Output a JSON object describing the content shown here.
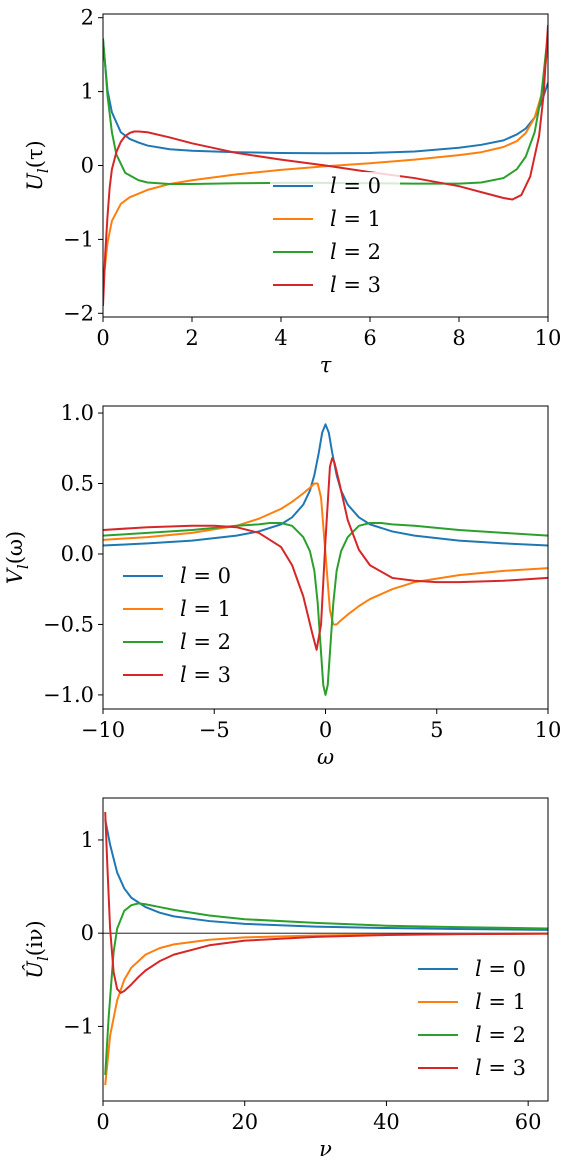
{
  "chart_data": [
    {
      "type": "line",
      "xlabel": "τ",
      "ylabel": "U_l(τ)",
      "xlim": [
        0,
        10
      ],
      "ylim": [
        -2.05,
        2.05
      ],
      "xticks": [
        0,
        2,
        4,
        6,
        8,
        10
      ],
      "xtick_labels": [
        "0",
        "2",
        "4",
        "6",
        "8",
        "10"
      ],
      "yticks": [
        -2,
        -1,
        0,
        1,
        2
      ],
      "ytick_labels": [
        "−2",
        "−1",
        "0",
        "1",
        "2"
      ],
      "legend_position": "lower-center",
      "zero_line": false,
      "series": [
        {
          "name": "l = 0",
          "color": "#1f77b4",
          "x": [
            0,
            0.1,
            0.2,
            0.4,
            0.6,
            0.8,
            1,
            1.5,
            2,
            3,
            4,
            5,
            6,
            7,
            8,
            8.5,
            9,
            9.3,
            9.5,
            9.7,
            9.85,
            10
          ],
          "y": [
            1.7,
            1.02,
            0.72,
            0.45,
            0.36,
            0.31,
            0.27,
            0.22,
            0.2,
            0.18,
            0.17,
            0.165,
            0.17,
            0.19,
            0.24,
            0.28,
            0.34,
            0.42,
            0.5,
            0.65,
            0.85,
            1.12
          ]
        },
        {
          "name": "l = 1",
          "color": "#ff7f0e",
          "x": [
            0,
            0.1,
            0.2,
            0.4,
            0.6,
            1,
            1.5,
            2,
            3,
            4,
            5,
            6,
            7,
            8,
            8.5,
            9,
            9.3,
            9.5,
            9.7,
            9.85,
            10
          ],
          "y": [
            -1.62,
            -1.05,
            -0.75,
            -0.52,
            -0.43,
            -0.33,
            -0.25,
            -0.2,
            -0.12,
            -0.06,
            -0.01,
            0.03,
            0.08,
            0.14,
            0.18,
            0.25,
            0.33,
            0.44,
            0.65,
            0.95,
            1.62
          ]
        },
        {
          "name": "l = 2",
          "color": "#2ca02c",
          "x": [
            0,
            0.05,
            0.1,
            0.2,
            0.3,
            0.5,
            0.8,
            1,
            1.5,
            2,
            3,
            4,
            5,
            6,
            7,
            8,
            8.5,
            9,
            9.3,
            9.5,
            9.7,
            9.85,
            10
          ],
          "y": [
            1.72,
            1.35,
            0.95,
            0.45,
            0.15,
            -0.1,
            -0.2,
            -0.23,
            -0.25,
            -0.25,
            -0.24,
            -0.235,
            -0.235,
            -0.24,
            -0.245,
            -0.245,
            -0.23,
            -0.17,
            -0.05,
            0.12,
            0.45,
            0.95,
            1.8
          ]
        },
        {
          "name": "l = 3",
          "color": "#d62728",
          "x": [
            0,
            0.05,
            0.1,
            0.15,
            0.2,
            0.3,
            0.4,
            0.5,
            0.6,
            0.7,
            0.8,
            1,
            1.5,
            2,
            3,
            4,
            5,
            6,
            7,
            8,
            8.5,
            9,
            9.2,
            9.4,
            9.6,
            9.8,
            9.9,
            10
          ],
          "y": [
            -1.9,
            -1.2,
            -0.7,
            -0.3,
            -0.05,
            0.18,
            0.32,
            0.4,
            0.44,
            0.46,
            0.46,
            0.45,
            0.38,
            0.3,
            0.17,
            0.08,
            0.0,
            -0.09,
            -0.17,
            -0.28,
            -0.36,
            -0.44,
            -0.46,
            -0.4,
            -0.15,
            0.4,
            0.95,
            1.9
          ]
        }
      ]
    },
    {
      "type": "line",
      "xlabel": "ω",
      "ylabel": "V_l(ω)",
      "xlim": [
        -10,
        10
      ],
      "ylim": [
        -1.1,
        1.05
      ],
      "xticks": [
        -10,
        -5,
        0,
        5,
        10
      ],
      "xtick_labels": [
        "−10",
        "−5",
        "0",
        "5",
        "10"
      ],
      "yticks": [
        -1.0,
        -0.5,
        0.0,
        0.5,
        1.0
      ],
      "ytick_labels": [
        "−1.0",
        "−0.5",
        "0.0",
        "0.5",
        "1.0"
      ],
      "legend_position": "lower-left",
      "zero_line": false,
      "series": [
        {
          "name": "l = 0",
          "color": "#1f77b4",
          "x": [
            -10,
            -8,
            -6,
            -4,
            -3,
            -2,
            -1.5,
            -1,
            -0.7,
            -0.5,
            -0.3,
            -0.15,
            0,
            0.15,
            0.3,
            0.5,
            0.7,
            1,
            1.5,
            2,
            3,
            4,
            6,
            8,
            10
          ],
          "y": [
            0.06,
            0.075,
            0.095,
            0.13,
            0.16,
            0.21,
            0.26,
            0.35,
            0.45,
            0.56,
            0.72,
            0.86,
            0.92,
            0.86,
            0.72,
            0.56,
            0.45,
            0.35,
            0.26,
            0.21,
            0.16,
            0.13,
            0.095,
            0.075,
            0.06
          ]
        },
        {
          "name": "l = 1",
          "color": "#ff7f0e",
          "x": [
            -10,
            -8,
            -6,
            -4,
            -3,
            -2,
            -1.5,
            -1,
            -0.7,
            -0.5,
            -0.35,
            -0.2,
            -0.1,
            0,
            0.1,
            0.2,
            0.35,
            0.5,
            0.7,
            1,
            1.5,
            2,
            3,
            4,
            6,
            8,
            10
          ],
          "y": [
            0.1,
            0.12,
            0.15,
            0.2,
            0.25,
            0.32,
            0.37,
            0.43,
            0.47,
            0.5,
            0.5,
            0.4,
            0.2,
            0.0,
            -0.2,
            -0.4,
            -0.5,
            -0.5,
            -0.47,
            -0.43,
            -0.37,
            -0.32,
            -0.25,
            -0.2,
            -0.15,
            -0.12,
            -0.1
          ]
        },
        {
          "name": "l = 2",
          "color": "#2ca02c",
          "x": [
            -10,
            -8,
            -6,
            -4,
            -3,
            -2.5,
            -2,
            -1.5,
            -1,
            -0.7,
            -0.5,
            -0.35,
            -0.2,
            -0.1,
            0,
            0.1,
            0.2,
            0.35,
            0.5,
            0.7,
            1,
            1.5,
            2,
            2.5,
            3,
            4,
            6,
            8,
            10
          ],
          "y": [
            0.13,
            0.15,
            0.17,
            0.2,
            0.21,
            0.22,
            0.22,
            0.2,
            0.12,
            0.02,
            -0.12,
            -0.35,
            -0.7,
            -0.93,
            -1.0,
            -0.93,
            -0.7,
            -0.35,
            -0.12,
            0.02,
            0.12,
            0.2,
            0.22,
            0.22,
            0.21,
            0.2,
            0.17,
            0.15,
            0.13
          ]
        },
        {
          "name": "l = 3",
          "color": "#d62728",
          "x": [
            -10,
            -8,
            -6,
            -5,
            -4,
            -3,
            -2,
            -1.5,
            -1,
            -0.6,
            -0.4,
            -0.2,
            0,
            0.2,
            0.3,
            0.4,
            0.6,
            0.8,
            1,
            1.5,
            2,
            3,
            4,
            5,
            6,
            8,
            10
          ],
          "y": [
            0.17,
            0.19,
            0.2,
            0.2,
            0.19,
            0.15,
            0.05,
            -0.08,
            -0.3,
            -0.56,
            -0.68,
            -0.5,
            0.1,
            0.62,
            0.68,
            0.65,
            0.52,
            0.38,
            0.24,
            0.03,
            -0.08,
            -0.17,
            -0.19,
            -0.2,
            -0.2,
            -0.19,
            -0.17
          ]
        }
      ]
    },
    {
      "type": "line",
      "xlabel": "ν",
      "ylabel": "Û_l(iν)",
      "xlim": [
        0,
        62.8
      ],
      "ylim": [
        -1.8,
        1.45
      ],
      "xticks": [
        0,
        20,
        40,
        60
      ],
      "xtick_labels": [
        "0",
        "20",
        "40",
        "60"
      ],
      "yticks": [
        -1,
        0,
        1
      ],
      "ytick_labels": [
        "−1",
        "0",
        "1"
      ],
      "legend_position": "lower-right",
      "zero_line": true,
      "series": [
        {
          "name": "l = 0",
          "color": "#1f77b4",
          "x": [
            0.314,
            1,
            2,
            3,
            4,
            6,
            8,
            10,
            15,
            20,
            30,
            40,
            50,
            62.8
          ],
          "y": [
            1.22,
            0.95,
            0.65,
            0.48,
            0.38,
            0.28,
            0.22,
            0.18,
            0.13,
            0.1,
            0.07,
            0.055,
            0.045,
            0.035
          ]
        },
        {
          "name": "l = 1",
          "color": "#ff7f0e",
          "x": [
            0.314,
            1,
            2,
            3,
            4,
            6,
            8,
            10,
            15,
            20,
            30,
            40,
            50,
            62.8
          ],
          "y": [
            -1.63,
            -1.1,
            -0.72,
            -0.5,
            -0.37,
            -0.23,
            -0.16,
            -0.12,
            -0.07,
            -0.045,
            -0.025,
            -0.015,
            -0.01,
            -0.005
          ]
        },
        {
          "name": "l = 2",
          "color": "#2ca02c",
          "x": [
            0.314,
            0.8,
            1.5,
            2,
            3,
            4,
            5,
            6,
            8,
            10,
            15,
            20,
            30,
            40,
            50,
            62.8
          ],
          "y": [
            -1.52,
            -0.9,
            -0.2,
            0.05,
            0.24,
            0.3,
            0.32,
            0.31,
            0.28,
            0.25,
            0.19,
            0.15,
            0.11,
            0.08,
            0.065,
            0.05
          ]
        },
        {
          "name": "l = 3",
          "color": "#d62728",
          "x": [
            0.314,
            0.6,
            1,
            1.5,
            2,
            2.5,
            3,
            4,
            5,
            6,
            8,
            10,
            15,
            20,
            30,
            40,
            50,
            62.8
          ],
          "y": [
            1.3,
            0.75,
            0.05,
            -0.42,
            -0.6,
            -0.64,
            -0.62,
            -0.55,
            -0.47,
            -0.4,
            -0.3,
            -0.23,
            -0.13,
            -0.08,
            -0.04,
            -0.02,
            -0.01,
            -0.005
          ]
        }
      ]
    }
  ]
}
